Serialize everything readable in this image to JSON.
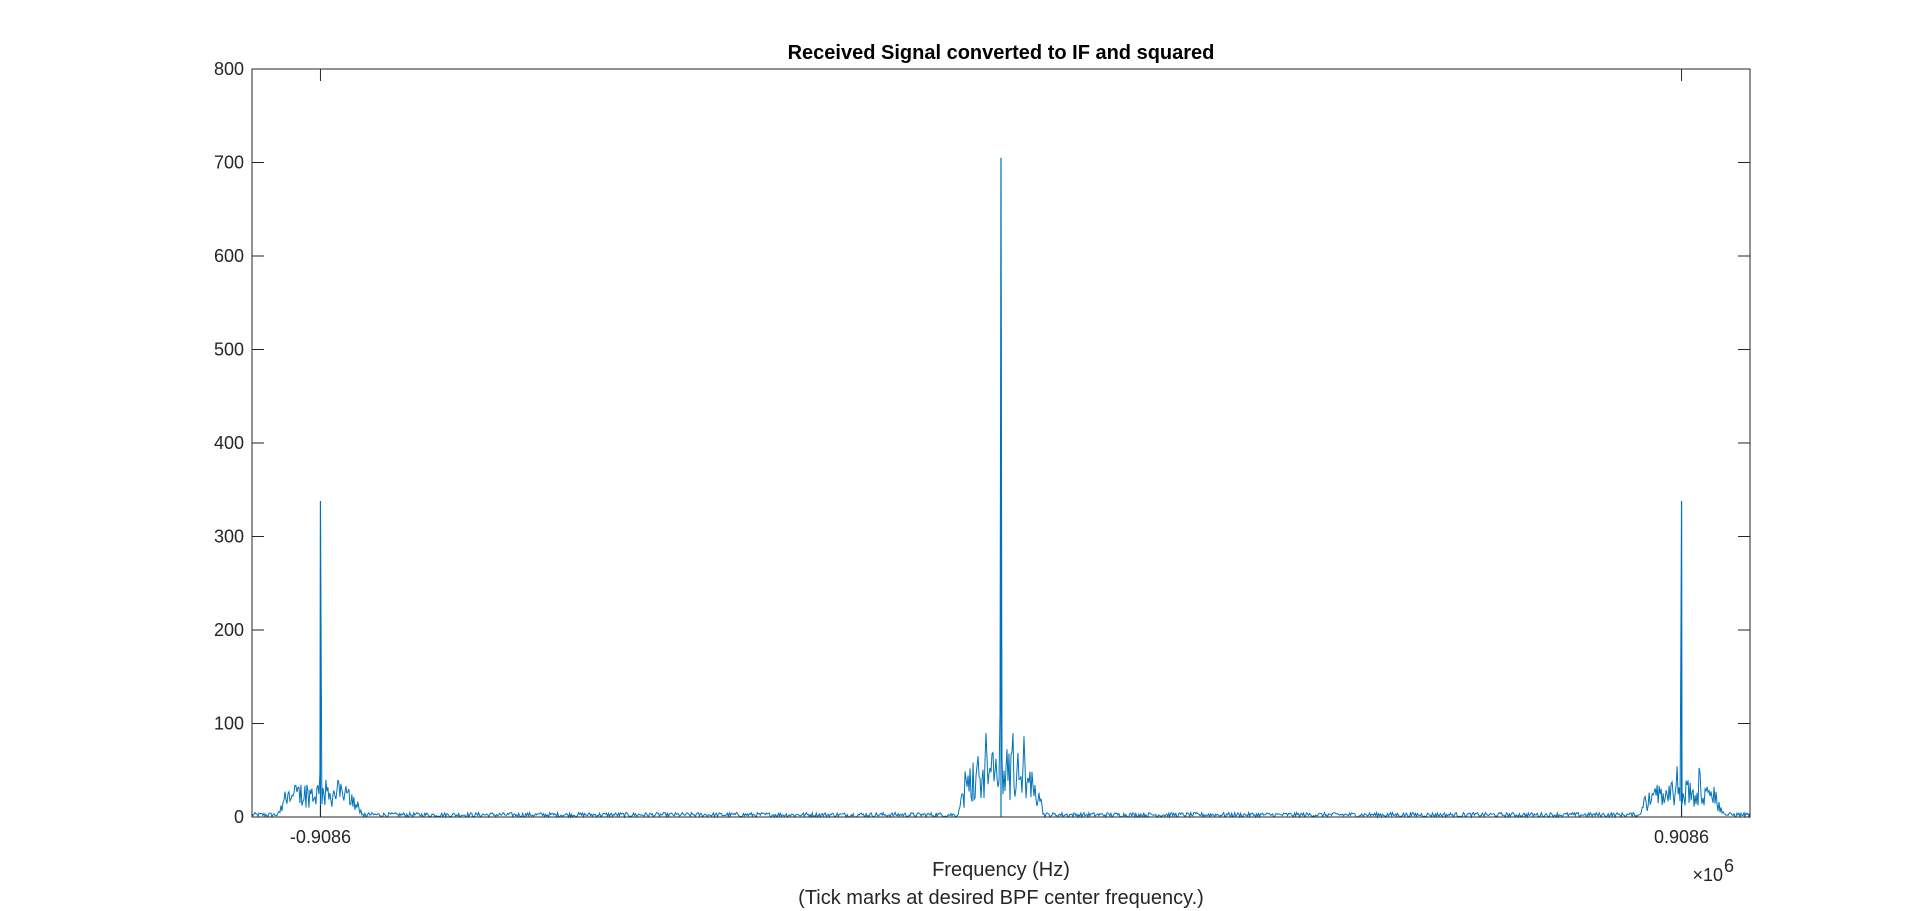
{
  "chart_data": {
    "type": "line",
    "title": "Received Signal converted to IF and squared",
    "xlabel": "Frequency (Hz)",
    "xlabel_note": "(Tick marks at desired BPF center frequency.)",
    "ylabel": "",
    "x_exponent_base": "×10",
    "x_exponent_power": "6",
    "xlim": [
      -1.0,
      1.0
    ],
    "ylim": [
      0,
      800
    ],
    "yticks": [
      0,
      100,
      200,
      300,
      400,
      500,
      600,
      700,
      800
    ],
    "xticks": [
      -0.9086,
      0.9086
    ],
    "xtick_labels": [
      "-0.9086",
      "0.9086"
    ],
    "grid": false,
    "colors": {
      "line": "#0072BD",
      "axes": "#262626"
    },
    "series": [
      {
        "peaks": [
          {
            "x": -0.9086,
            "y": 338
          },
          {
            "x": 0.0,
            "y": 705
          },
          {
            "x": 0.9086,
            "y": 338
          }
        ],
        "clusters": [
          {
            "center": -0.9086,
            "halfwidth": 0.058,
            "level": 25,
            "max": 58
          },
          {
            "center": 0.0,
            "halfwidth": 0.058,
            "level": 45,
            "max": 117
          },
          {
            "center": 0.9086,
            "halfwidth": 0.058,
            "level": 25,
            "max": 58
          }
        ],
        "noise_floor": 3
      }
    ]
  }
}
